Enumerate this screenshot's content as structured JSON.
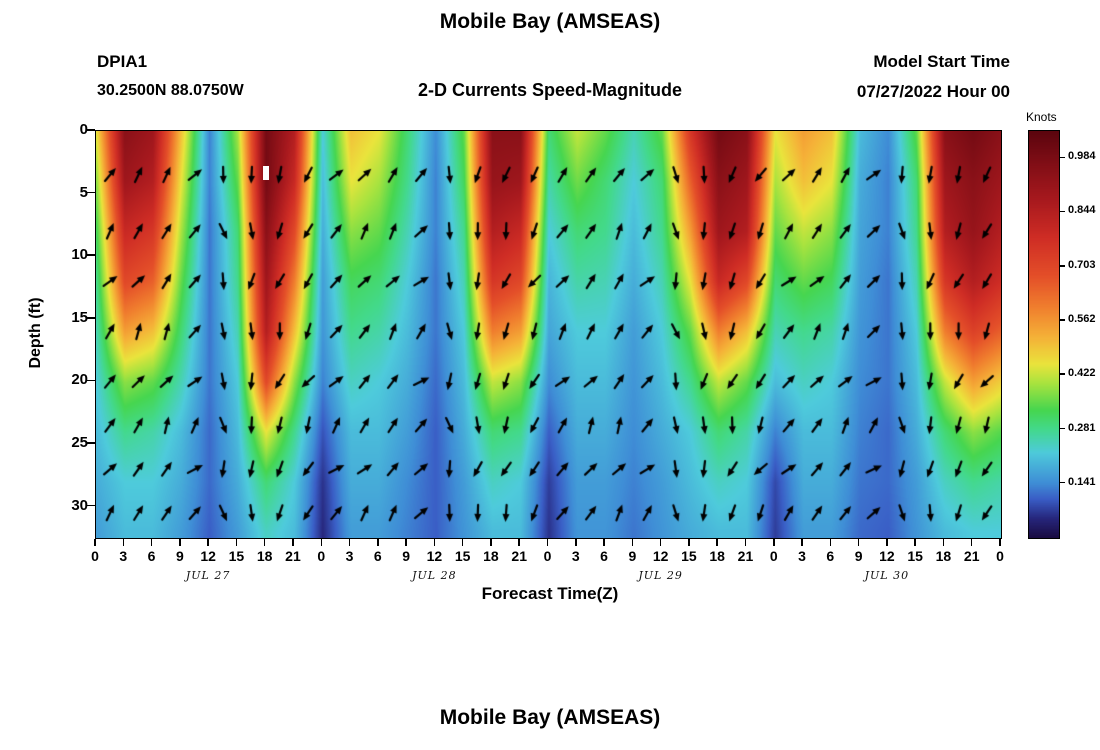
{
  "header": {
    "title": "Mobile Bay (AMSEAS)",
    "station_id": "DPIA1",
    "station_coords": "30.2500N  88.0750W",
    "subtitle": "2-D Currents Speed-Magnitude",
    "model_start_label": "Model Start Time",
    "model_start_value": "07/27/2022 Hour 00"
  },
  "axes": {
    "ylabel": "Depth (ft)",
    "xlabel": "Forecast Time(Z)",
    "y_ticks": [
      0,
      5,
      10,
      15,
      20,
      25,
      30
    ],
    "y_max": 32.5,
    "x_max_hours": 96,
    "x_tick_hours": [
      0,
      3,
      6,
      9,
      12,
      15,
      18,
      21,
      24,
      27,
      30,
      33,
      36,
      39,
      42,
      45,
      48,
      51,
      54,
      57,
      60,
      63,
      66,
      69,
      72,
      75,
      78,
      81,
      84,
      87,
      90,
      93,
      96
    ],
    "x_tick_labels": [
      "0",
      "3",
      "6",
      "9",
      "12",
      "15",
      "18",
      "21",
      "0",
      "3",
      "6",
      "9",
      "12",
      "15",
      "18",
      "21",
      "0",
      "3",
      "6",
      "9",
      "12",
      "15",
      "18",
      "21",
      "0",
      "3",
      "6",
      "9",
      "12",
      "15",
      "18",
      "21",
      "0"
    ],
    "day_labels": [
      "JUL 27",
      "JUL 28",
      "JUL 29",
      "JUL 30"
    ],
    "day_center_hours": [
      12,
      36,
      60,
      84
    ]
  },
  "colorbar": {
    "label": "Knots",
    "min": 0,
    "max": 1.055,
    "ticks": [
      0.984,
      0.844,
      0.703,
      0.562,
      0.422,
      0.281,
      0.141
    ],
    "stops": [
      {
        "v": 0.0,
        "c": "#1a0c44"
      },
      {
        "v": 0.05,
        "c": "#27277d"
      },
      {
        "v": 0.1,
        "c": "#3a5ec6"
      },
      {
        "v": 0.141,
        "c": "#3f8ed6"
      },
      {
        "v": 0.22,
        "c": "#4ecbdb"
      },
      {
        "v": 0.281,
        "c": "#43d98c"
      },
      {
        "v": 0.33,
        "c": "#46d650"
      },
      {
        "v": 0.4,
        "c": "#a8e33f"
      },
      {
        "v": 0.45,
        "c": "#eae43c"
      },
      {
        "v": 0.52,
        "c": "#f5b238"
      },
      {
        "v": 0.6,
        "c": "#f07e2e"
      },
      {
        "v": 0.68,
        "c": "#e44f29"
      },
      {
        "v": 0.78,
        "c": "#cf2d25"
      },
      {
        "v": 0.88,
        "c": "#a7191e"
      },
      {
        "v": 0.984,
        "c": "#7c0d15"
      },
      {
        "v": 1.055,
        "c": "#5c050e"
      }
    ]
  },
  "chart_data": {
    "type": "heatmap",
    "title": "Mobile Bay (AMSEAS) 2-D Currents Speed-Magnitude at DPIA1",
    "xlabel": "Forecast Time(Z)",
    "ylabel": "Depth (ft)",
    "units": "Knots",
    "x_hours": [
      0,
      3,
      6,
      9,
      12,
      15,
      18,
      21,
      24,
      27,
      30,
      33,
      36,
      39,
      42,
      45,
      48,
      51,
      54,
      57,
      60,
      63,
      66,
      69,
      72,
      75,
      78,
      81,
      84,
      87,
      90,
      93,
      96
    ],
    "depths_ft": [
      0,
      4,
      8,
      12,
      16,
      20,
      24,
      28,
      32
    ],
    "values_knots": [
      [
        0.45,
        0.95,
        0.9,
        0.5,
        0.13,
        0.4,
        1.0,
        0.85,
        0.22,
        0.5,
        0.45,
        0.3,
        0.14,
        0.35,
        0.95,
        0.95,
        0.3,
        0.42,
        0.35,
        0.25,
        0.35,
        0.75,
        1.0,
        0.95,
        0.45,
        0.55,
        0.5,
        0.2,
        0.14,
        0.35,
        0.95,
        1.0,
        0.95
      ],
      [
        0.38,
        0.9,
        0.85,
        0.45,
        0.13,
        0.35,
        1.0,
        0.8,
        0.2,
        0.45,
        0.4,
        0.28,
        0.13,
        0.32,
        0.92,
        0.9,
        0.26,
        0.36,
        0.3,
        0.22,
        0.3,
        0.65,
        0.95,
        0.9,
        0.4,
        0.5,
        0.45,
        0.18,
        0.13,
        0.3,
        0.9,
        0.95,
        0.9
      ],
      [
        0.32,
        0.8,
        0.75,
        0.4,
        0.12,
        0.3,
        0.95,
        0.7,
        0.18,
        0.38,
        0.35,
        0.25,
        0.13,
        0.28,
        0.85,
        0.8,
        0.22,
        0.3,
        0.28,
        0.2,
        0.28,
        0.55,
        0.9,
        0.85,
        0.35,
        0.42,
        0.38,
        0.17,
        0.13,
        0.28,
        0.85,
        0.92,
        0.85
      ],
      [
        0.28,
        0.7,
        0.65,
        0.35,
        0.12,
        0.28,
        0.9,
        0.6,
        0.16,
        0.32,
        0.3,
        0.22,
        0.12,
        0.25,
        0.75,
        0.7,
        0.19,
        0.26,
        0.25,
        0.18,
        0.25,
        0.45,
        0.8,
        0.7,
        0.3,
        0.35,
        0.32,
        0.16,
        0.12,
        0.25,
        0.75,
        0.85,
        0.78
      ],
      [
        0.25,
        0.55,
        0.5,
        0.3,
        0.12,
        0.25,
        0.85,
        0.5,
        0.15,
        0.28,
        0.26,
        0.2,
        0.12,
        0.22,
        0.6,
        0.55,
        0.17,
        0.22,
        0.22,
        0.16,
        0.22,
        0.35,
        0.6,
        0.5,
        0.25,
        0.28,
        0.26,
        0.15,
        0.12,
        0.22,
        0.6,
        0.72,
        0.65
      ],
      [
        0.22,
        0.38,
        0.35,
        0.25,
        0.12,
        0.22,
        0.7,
        0.38,
        0.13,
        0.24,
        0.22,
        0.18,
        0.11,
        0.2,
        0.42,
        0.38,
        0.14,
        0.2,
        0.2,
        0.15,
        0.2,
        0.28,
        0.42,
        0.35,
        0.2,
        0.24,
        0.22,
        0.14,
        0.12,
        0.2,
        0.42,
        0.55,
        0.48
      ],
      [
        0.2,
        0.28,
        0.26,
        0.2,
        0.11,
        0.2,
        0.45,
        0.28,
        0.09,
        0.2,
        0.2,
        0.16,
        0.1,
        0.18,
        0.3,
        0.28,
        0.1,
        0.18,
        0.18,
        0.14,
        0.18,
        0.22,
        0.3,
        0.26,
        0.13,
        0.2,
        0.2,
        0.13,
        0.11,
        0.18,
        0.3,
        0.38,
        0.34
      ],
      [
        0.18,
        0.22,
        0.22,
        0.18,
        0.11,
        0.18,
        0.3,
        0.22,
        0.06,
        0.18,
        0.18,
        0.14,
        0.1,
        0.16,
        0.24,
        0.22,
        0.07,
        0.16,
        0.16,
        0.13,
        0.16,
        0.2,
        0.24,
        0.22,
        0.08,
        0.18,
        0.18,
        0.12,
        0.11,
        0.16,
        0.24,
        0.28,
        0.26
      ],
      [
        0.16,
        0.2,
        0.2,
        0.16,
        0.1,
        0.16,
        0.24,
        0.2,
        0.05,
        0.16,
        0.16,
        0.13,
        0.1,
        0.15,
        0.2,
        0.2,
        0.06,
        0.15,
        0.15,
        0.12,
        0.15,
        0.18,
        0.2,
        0.2,
        0.07,
        0.16,
        0.16,
        0.11,
        0.1,
        0.15,
        0.2,
        0.22,
        0.22
      ]
    ],
    "arrows": {
      "description": "current direction vectors overlaid on heatmap",
      "hours_start": 1.5,
      "hours_step": 3,
      "cols": 32,
      "row_depths_ft": [
        3.5,
        8,
        12,
        16,
        20,
        23.5,
        27,
        30.5
      ],
      "col_angles_deg": [
        50,
        55,
        60,
        45,
        -80,
        -95,
        -110,
        -120,
        45,
        50,
        55,
        40,
        -85,
        -100,
        -110,
        -120,
        50,
        55,
        60,
        45,
        -80,
        -95,
        -110,
        -120,
        45,
        50,
        55,
        40,
        -85,
        -100,
        -110,
        -120
      ],
      "row_offsets_deg": [
        0,
        8,
        -6,
        10,
        -8,
        12,
        -10,
        6
      ]
    }
  },
  "footer": {
    "next_title": "Mobile Bay (AMSEAS)"
  }
}
